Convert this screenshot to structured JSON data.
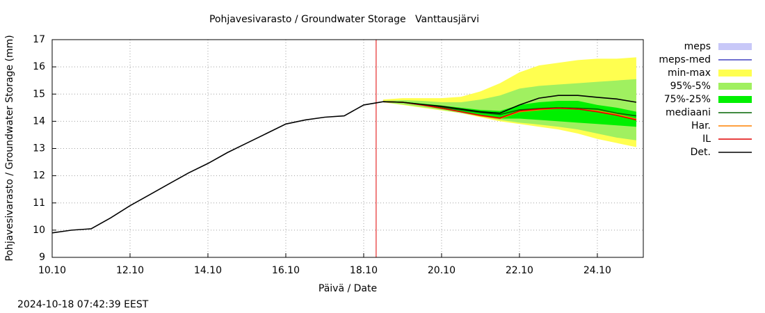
{
  "chart_data": {
    "type": "line",
    "title": "Pohjavesivarasto / Groundwater Storage   Vanttausjärvi",
    "x_label": "Päivä / Date",
    "y_label": "Pohjavesivarasto / Groundwater Storage (mm)",
    "footnote": "2024-10-18 07:42:39 EEST",
    "xlim": [
      10,
      25.18
    ],
    "xticks": [
      {
        "value": 10,
        "label": "10.10"
      },
      {
        "value": 12,
        "label": "12.10"
      },
      {
        "value": 14,
        "label": "14.10"
      },
      {
        "value": 16,
        "label": "16.10"
      },
      {
        "value": 18,
        "label": "18.10"
      },
      {
        "value": 20,
        "label": "20.10"
      },
      {
        "value": 22,
        "label": "22.10"
      },
      {
        "value": 24,
        "label": "24.10"
      }
    ],
    "ylim": [
      9,
      17
    ],
    "yticks": [
      9,
      10,
      11,
      12,
      13,
      14,
      15,
      16,
      17
    ],
    "grid": true,
    "marker_x": 18.32,
    "marker_color": "#e00000",
    "x": [
      10,
      10.5,
      11,
      11.5,
      12,
      12.5,
      13,
      13.5,
      14,
      14.5,
      15,
      15.5,
      16,
      16.5,
      17,
      17.5,
      18,
      18.5,
      19,
      19.5,
      20,
      20.5,
      21,
      21.5,
      22,
      22.5,
      23,
      23.5,
      24,
      24.5,
      25
    ],
    "series": [
      {
        "name": "meps",
        "kind": "band",
        "color": "#c8c8f8",
        "low": [
          null,
          null,
          null,
          null,
          null,
          null,
          null,
          null,
          null,
          null,
          null,
          null,
          null,
          null,
          null,
          null,
          null,
          null,
          null,
          null,
          null,
          null,
          null,
          null,
          null,
          null,
          null,
          null,
          null,
          null,
          null
        ],
        "high": [
          null,
          null,
          null,
          null,
          null,
          null,
          null,
          null,
          null,
          null,
          null,
          null,
          null,
          null,
          null,
          null,
          null,
          null,
          null,
          null,
          null,
          null,
          null,
          null,
          null,
          null,
          null,
          null,
          null,
          null,
          null
        ]
      },
      {
        "name": "meps-med",
        "kind": "line",
        "color": "#4040c0",
        "values": [
          null,
          null,
          null,
          null,
          null,
          null,
          null,
          null,
          null,
          null,
          null,
          null,
          null,
          null,
          null,
          null,
          null,
          null,
          null,
          null,
          null,
          null,
          null,
          null,
          null,
          null,
          null,
          null,
          null,
          null,
          null
        ]
      },
      {
        "name": "min-max",
        "kind": "band",
        "color": "#ffff50",
        "low": [
          null,
          null,
          null,
          null,
          null,
          null,
          null,
          null,
          null,
          null,
          null,
          null,
          null,
          null,
          null,
          null,
          null,
          14.7,
          14.6,
          14.5,
          14.4,
          14.3,
          14.15,
          14.0,
          13.9,
          13.8,
          13.7,
          13.55,
          13.35,
          13.2,
          13.05
        ],
        "high": [
          null,
          null,
          null,
          null,
          null,
          null,
          null,
          null,
          null,
          null,
          null,
          null,
          null,
          null,
          null,
          null,
          null,
          14.8,
          14.85,
          14.85,
          14.85,
          14.9,
          15.1,
          15.4,
          15.8,
          16.05,
          16.15,
          16.25,
          16.3,
          16.3,
          16.35
        ]
      },
      {
        "name": "95%-5%",
        "kind": "band",
        "color": "#a0f060",
        "low": [
          null,
          null,
          null,
          null,
          null,
          null,
          null,
          null,
          null,
          null,
          null,
          null,
          null,
          null,
          null,
          null,
          null,
          14.7,
          14.62,
          14.52,
          14.42,
          14.3,
          14.18,
          14.05,
          13.95,
          13.88,
          13.8,
          13.7,
          13.55,
          13.4,
          13.3
        ],
        "high": [
          null,
          null,
          null,
          null,
          null,
          null,
          null,
          null,
          null,
          null,
          null,
          null,
          null,
          null,
          null,
          null,
          null,
          14.75,
          14.78,
          14.75,
          14.7,
          14.7,
          14.8,
          14.95,
          15.2,
          15.3,
          15.35,
          15.4,
          15.45,
          15.5,
          15.55
        ]
      },
      {
        "name": "75%-25%",
        "kind": "band",
        "color": "#00f000",
        "low": [
          null,
          null,
          null,
          null,
          null,
          null,
          null,
          null,
          null,
          null,
          null,
          null,
          null,
          null,
          null,
          null,
          null,
          14.72,
          14.68,
          14.58,
          14.45,
          14.35,
          14.22,
          14.1,
          14.1,
          14.05,
          14.0,
          13.95,
          13.9,
          13.85,
          13.8
        ],
        "high": [
          null,
          null,
          null,
          null,
          null,
          null,
          null,
          null,
          null,
          null,
          null,
          null,
          null,
          null,
          null,
          null,
          null,
          14.72,
          14.72,
          14.65,
          14.58,
          14.5,
          14.42,
          14.38,
          14.6,
          14.7,
          14.75,
          14.75,
          14.6,
          14.5,
          14.35
        ]
      },
      {
        "name": "mediaani",
        "kind": "line",
        "color": "#006400",
        "values": [
          null,
          null,
          null,
          null,
          null,
          null,
          null,
          null,
          null,
          null,
          null,
          null,
          null,
          null,
          null,
          null,
          null,
          14.72,
          14.7,
          14.62,
          14.52,
          14.42,
          14.32,
          14.25,
          14.42,
          14.47,
          14.5,
          14.48,
          14.45,
          14.3,
          14.2
        ]
      },
      {
        "name": "Har.",
        "kind": "line",
        "color": "#ff8000",
        "values": [
          null,
          null,
          null,
          null,
          null,
          null,
          null,
          null,
          null,
          null,
          null,
          null,
          null,
          null,
          null,
          null,
          null,
          14.72,
          14.7,
          14.6,
          14.48,
          14.35,
          14.2,
          14.1,
          14.35,
          14.42,
          14.48,
          14.45,
          14.38,
          14.25,
          14.08
        ]
      },
      {
        "name": "IL",
        "kind": "line",
        "color": "#e00000",
        "values": [
          null,
          null,
          null,
          null,
          null,
          null,
          null,
          null,
          null,
          null,
          null,
          null,
          null,
          null,
          null,
          null,
          null,
          14.72,
          14.7,
          14.6,
          14.48,
          14.35,
          14.22,
          14.12,
          14.38,
          14.45,
          14.48,
          14.45,
          14.35,
          14.22,
          14.05
        ]
      },
      {
        "name": "Det.",
        "kind": "line",
        "color": "#000000",
        "values": [
          9.9,
          10.0,
          10.05,
          10.45,
          10.9,
          11.3,
          11.7,
          12.1,
          12.45,
          12.85,
          13.2,
          13.55,
          13.9,
          14.05,
          14.15,
          14.2,
          14.6,
          14.72,
          14.7,
          14.62,
          14.55,
          14.45,
          14.35,
          14.3,
          14.6,
          14.85,
          14.95,
          14.95,
          14.88,
          14.82,
          14.7
        ]
      }
    ]
  }
}
